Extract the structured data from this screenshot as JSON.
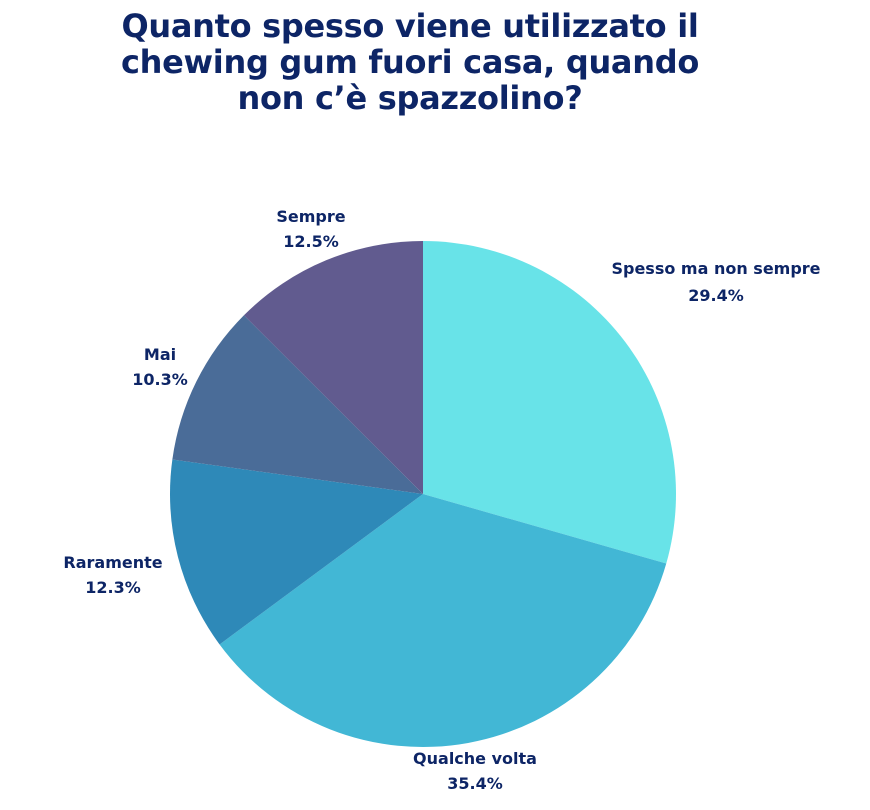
{
  "title_lines": [
    "Quanto spesso viene utilizzato il",
    "chewing gum fuori casa, quando",
    "non c’è spazzolino?"
  ],
  "colors": {
    "title": "#0d2566",
    "label": "#0d2566"
  },
  "chart_data": {
    "type": "pie",
    "title": "Quanto spesso viene utilizzato il chewing gum fuori casa, quando non c’è spazzolino?",
    "start": "12 o'clock, clockwise",
    "slices": [
      {
        "label": "Spesso ma non sempre",
        "value": 29.4,
        "value_label": "29.4%",
        "color": "#68e3e8"
      },
      {
        "label": "Qualche volta",
        "value": 35.4,
        "value_label": "35.4%",
        "color": "#42b7d5"
      },
      {
        "label": "Raramente",
        "value": 12.3,
        "value_label": "12.3%",
        "color": "#2e89b8"
      },
      {
        "label": "Mai",
        "value": 10.3,
        "value_label": "10.3%",
        "color": "#4a6c98"
      },
      {
        "label": "Sempre",
        "value": 12.5,
        "value_label": "12.5%",
        "color": "#615b8f"
      }
    ]
  }
}
